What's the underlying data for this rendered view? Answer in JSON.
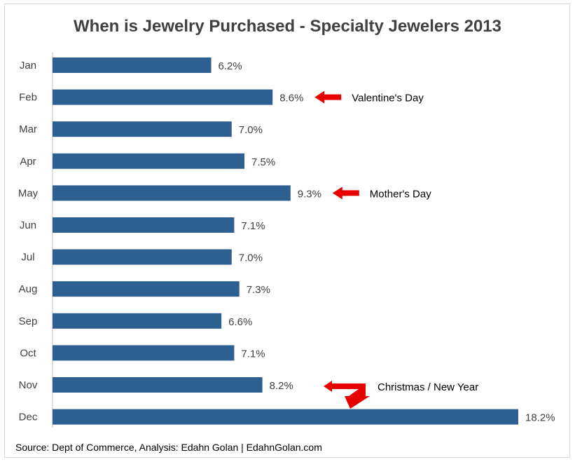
{
  "chart_data": {
    "type": "bar",
    "orientation": "horizontal",
    "title": "When is Jewelry Purchased  - Specialty Jewelers 2013",
    "categories": [
      "Jan",
      "Feb",
      "Mar",
      "Apr",
      "May",
      "Jun",
      "Jul",
      "Aug",
      "Sep",
      "Oct",
      "Nov",
      "Dec"
    ],
    "values": [
      6.2,
      8.6,
      7.0,
      7.5,
      9.3,
      7.1,
      7.0,
      7.3,
      6.6,
      7.1,
      8.2,
      18.2
    ],
    "value_labels": [
      "6.2%",
      "8.6%",
      "7.0%",
      "7.5%",
      "9.3%",
      "7.1%",
      "7.0%",
      "7.3%",
      "6.6%",
      "7.1%",
      "8.2%",
      "18.2%"
    ],
    "xlim": [
      0,
      18.2
    ],
    "grid": false,
    "legend": "none",
    "bar_color": "#2d5f91",
    "annotations": [
      {
        "category": "Feb",
        "text": "Valentine's Day",
        "arrow": "left"
      },
      {
        "category": "May",
        "text": "Mother's Day",
        "arrow": "left"
      },
      {
        "category": "Nov",
        "text": "Christmas / New Year",
        "arrow": "bent-down"
      }
    ],
    "annotation_arrow_color": "#e60000",
    "source": "Source: Dept of Commerce, Analysis: Edahn Golan | EdahnGolan.com"
  }
}
